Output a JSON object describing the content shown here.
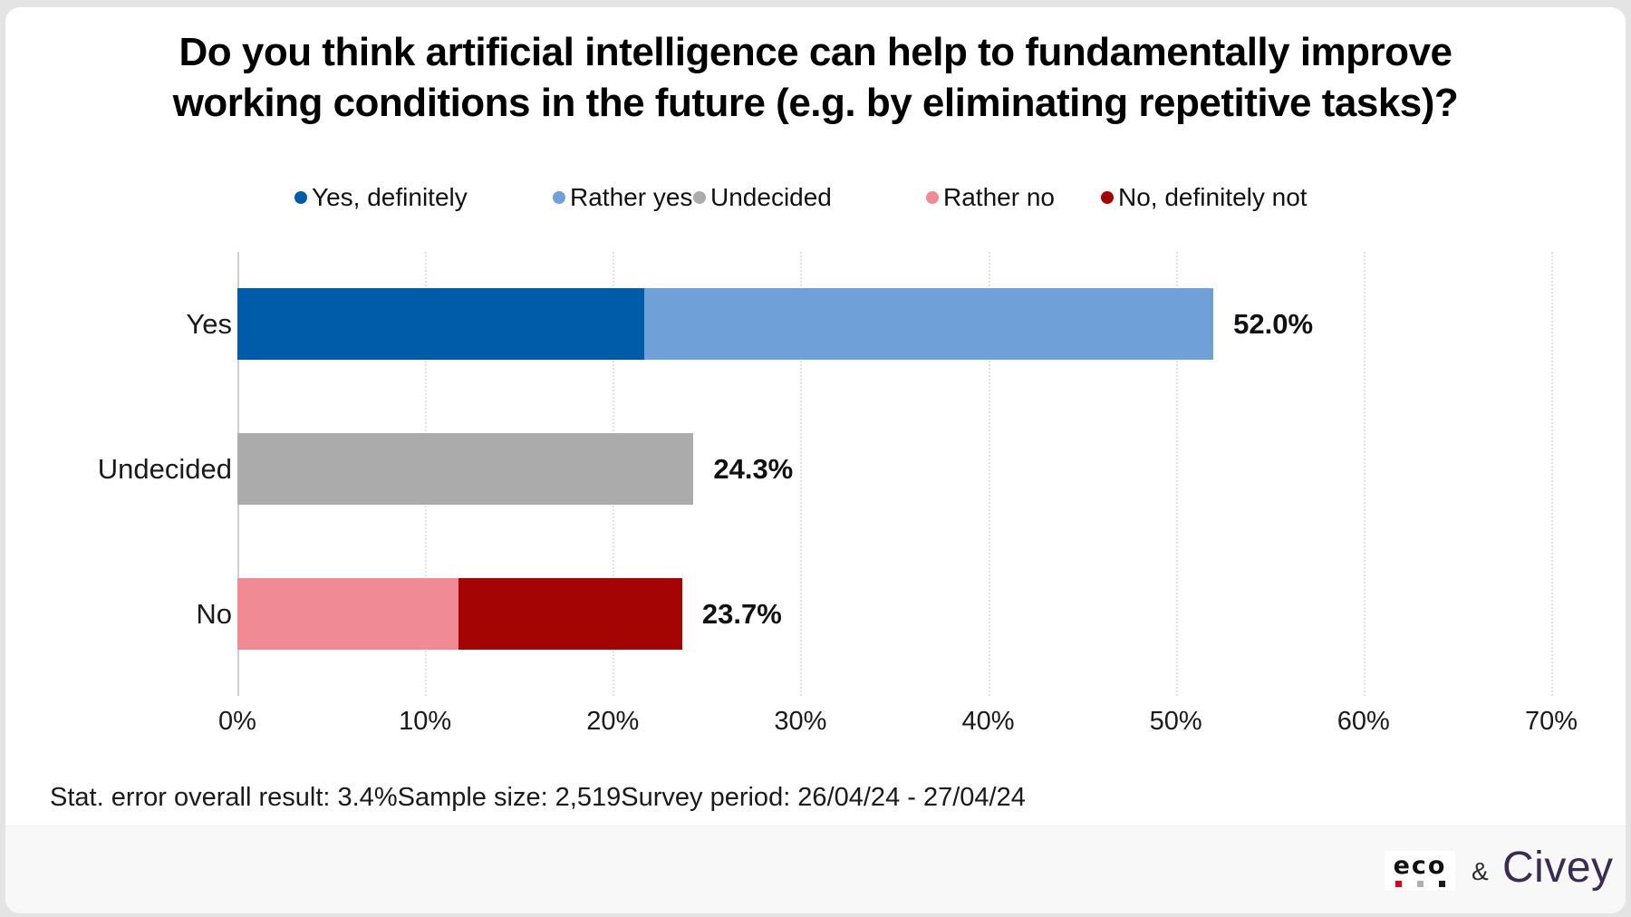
{
  "title": {
    "line1": "Do you think artificial intelligence can help to fundamentally improve",
    "line2": "working conditions in the future (e.g. by eliminating repetitive tasks)?"
  },
  "legend": [
    {
      "label": "Yes, definitely",
      "color": "#005CA9"
    },
    {
      "label": "Rather yes",
      "color": "#6FA0D8"
    },
    {
      "label": "Undecided",
      "color": "#ABABAB"
    },
    {
      "label": "Rather no",
      "color": "#F08B95"
    },
    {
      "label": "No, definitely not",
      "color": "#A40404"
    }
  ],
  "chart_data": {
    "type": "bar",
    "orientation": "horizontal",
    "stacked": true,
    "title": "Do you think artificial intelligence can help to fundamentally improve working conditions in the future (e.g. by eliminating repetitive tasks)?",
    "categories": [
      "Yes",
      "Undecided",
      "No"
    ],
    "series": [
      {
        "name": "Yes, definitely",
        "color": "#005CA9",
        "values": [
          21.7,
          0,
          0
        ]
      },
      {
        "name": "Rather yes",
        "color": "#6FA0D8",
        "values": [
          30.3,
          0,
          0
        ]
      },
      {
        "name": "Undecided",
        "color": "#ABABAB",
        "values": [
          0,
          24.3,
          0
        ]
      },
      {
        "name": "Rather no",
        "color": "#F08B95",
        "values": [
          0,
          0,
          11.8
        ]
      },
      {
        "name": "No, definitely not",
        "color": "#A40404",
        "values": [
          0,
          0,
          11.9
        ]
      }
    ],
    "totals": [
      "52.0%",
      "24.3%",
      "23.7%"
    ],
    "total_values": [
      52.0,
      24.3,
      23.7
    ],
    "xlim": [
      0,
      70
    ],
    "x_ticks": [
      "0%",
      "10%",
      "20%",
      "30%",
      "40%",
      "50%",
      "60%",
      "70%"
    ],
    "xlabel": "",
    "ylabel": "",
    "grid": "vertical-dashed",
    "legend_position": "top"
  },
  "footer": {
    "stat_error": "Stat. error overall result: 3.4%",
    "sample_size": "Sample size: 2,519",
    "survey_period": "Survey period: 26/04/24 - 27/04/24"
  },
  "branding": {
    "eco_label": "eco",
    "eco_square_colors": [
      "#e2001a",
      "#b0b0b0",
      "#1a1a1a"
    ],
    "ampersand": "&",
    "civey_label": "Civey",
    "civey_color": "#3A2D52"
  }
}
